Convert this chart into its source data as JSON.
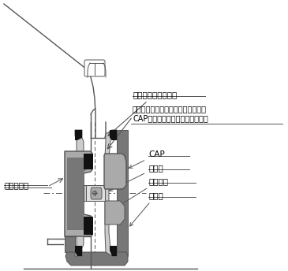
{
  "background_color": "#ffffff",
  "line_color": "#555555",
  "gray_dark": "#777777",
  "gray_mid": "#aaaaaa",
  "gray_light": "#cccccc",
  "black": "#111111",
  "labels": {
    "fender_fold": "フェンダー折り返し",
    "fender_note_1": "フェンダーからタイヤ・ホール本体",
    "fender_note_2": "CAPのはみ出しは法令違反です。",
    "caliper": "キャリパー",
    "cap": "CAP",
    "nut": "ナット",
    "wheel": "ホイール",
    "tire": "タイヤ"
  },
  "figsize": [
    3.65,
    3.44
  ],
  "dpi": 100
}
